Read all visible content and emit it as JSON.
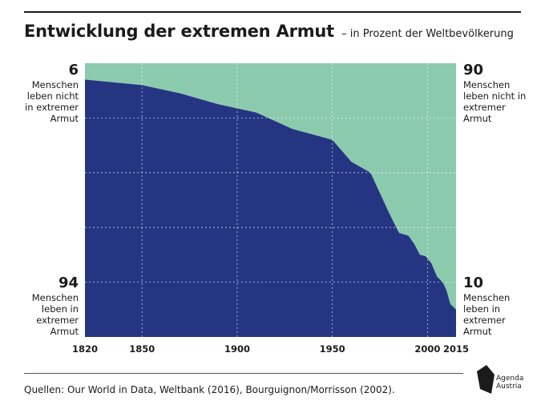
{
  "header": {
    "title": "Entwicklung der extremen Armut",
    "subtitle": "– in Prozent der Weltbevölkerung"
  },
  "left_top": {
    "value": "6",
    "text": "Menschen leben nicht in extremer Armut"
  },
  "left_bottom": {
    "value": "94",
    "text": "Menschen leben in extremer Armut"
  },
  "right_top": {
    "value": "90",
    "text": "Menschen leben nicht in extremer Armut"
  },
  "right_bottom": {
    "value": "10",
    "text": "Menschen leben in extremer Armut"
  },
  "footer": {
    "source": "Quellen: Our World in Data, Weltbank (2016), Bourguignon/Morrisson (2002).",
    "logo_text_1": "Agenda",
    "logo_text_2": "Austria"
  },
  "colors": {
    "extreme_poverty": "#253582",
    "not_extreme_poverty": "#8ccaae",
    "grid": "#ffffff"
  },
  "chart_data": {
    "type": "area",
    "stacked": true,
    "x_ticks": [
      "1820",
      "1850",
      "1900",
      "1950",
      "2000",
      "2015"
    ],
    "xlim": [
      1820,
      2015
    ],
    "ylim": [
      0,
      100
    ],
    "grid": true,
    "series": [
      {
        "key": "extreme",
        "x": [
          1820,
          1850,
          1870,
          1890,
          1910,
          1929,
          1950,
          1960,
          1970,
          1980,
          1985,
          1990,
          1993,
          1996,
          1999,
          2002,
          2005,
          2008,
          2010,
          2012,
          2015
        ],
        "values": [
          94,
          92,
          89,
          85,
          82,
          76,
          72,
          64,
          60,
          45,
          38,
          37,
          34,
          30,
          29.5,
          27,
          22,
          20,
          17,
          12,
          10
        ]
      },
      {
        "key": "not_extreme",
        "x": [
          1820,
          1850,
          1870,
          1890,
          1910,
          1929,
          1950,
          1960,
          1970,
          1980,
          1985,
          1990,
          1993,
          1996,
          1999,
          2002,
          2005,
          2008,
          2010,
          2012,
          2015
        ],
        "values": [
          6,
          8,
          11,
          15,
          18,
          24,
          28,
          36,
          40,
          55,
          62,
          63,
          66,
          70,
          70.5,
          73,
          78,
          80,
          83,
          88,
          90
        ]
      }
    ]
  }
}
